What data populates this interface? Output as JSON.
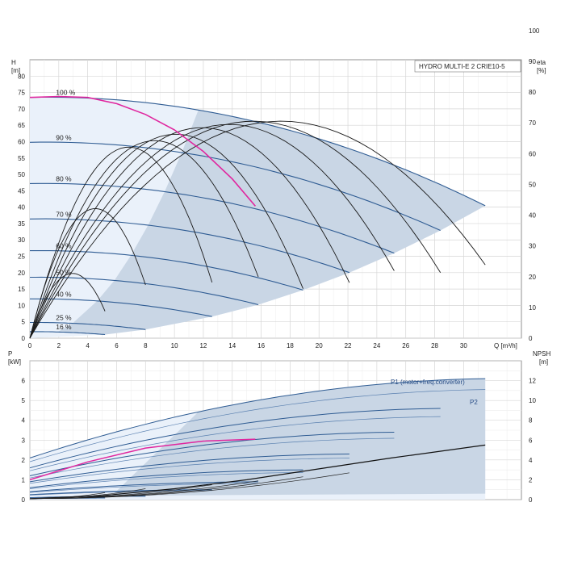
{
  "chart_data": [
    {
      "type": "line",
      "panel": "head",
      "title": "HYDRO MULTI-E 2 CRIE10-5",
      "xlabel": "Q [m³/h]",
      "ylabel_left": "H\n[m]",
      "ylabel_right": "eta\n[%]",
      "xlim": [
        0,
        34
      ],
      "ylim": [
        0,
        85
      ],
      "eta_lim": [
        0,
        100
      ],
      "x_ticks": [
        0,
        2,
        4,
        6,
        8,
        10,
        12,
        14,
        16,
        18,
        20,
        22,
        24,
        26,
        28,
        30
      ],
      "y_ticks": [
        0,
        5,
        10,
        15,
        20,
        25,
        30,
        35,
        40,
        45,
        50,
        55,
        60,
        65,
        70,
        75,
        80
      ],
      "eta_ticks": [
        0,
        10,
        20,
        30,
        40,
        50,
        60,
        70,
        80,
        90,
        100
      ],
      "grid": true,
      "speed_curves": [
        {
          "label": "100 %",
          "qmax": 31.5,
          "h0": 73.5
        },
        {
          "label": "90 %",
          "qmax": 28.4,
          "h0": 59.8
        },
        {
          "label": "80 %",
          "qmax": 25.2,
          "h0": 47.2
        },
        {
          "label": "70 %",
          "qmax": 22.1,
          "h0": 36.4
        },
        {
          "label": "60 %",
          "qmax": 18.9,
          "h0": 26.7
        },
        {
          "label": "50 %",
          "qmax": 15.8,
          "h0": 18.6
        },
        {
          "label": "40 %",
          "qmax": 12.6,
          "h0": 12.0
        },
        {
          "label": "25 %",
          "qmax": 8.0,
          "h0": 4.8
        },
        {
          "label": "16 %",
          "qmax": 5.2,
          "h0": 2.0
        }
      ],
      "duty_curve": {
        "q": [
          0,
          2,
          4,
          6,
          8,
          10,
          12,
          14,
          15.6
        ],
        "h": [
          73.5,
          73.8,
          73.5,
          71.6,
          68.3,
          63.6,
          57.0,
          48.6,
          40.3
        ]
      },
      "efficiency_peaks": [
        {
          "qpeak": 16.5,
          "eta": 67,
          "qend": 31.5
        },
        {
          "qpeak": 14.7,
          "eta": 67,
          "qend": 28.4
        },
        {
          "qpeak": 13.1,
          "eta": 66,
          "qend": 25.2
        },
        {
          "qpeak": 11.3,
          "eta": 65,
          "qend": 22.1
        },
        {
          "qpeak": 9.6,
          "eta": 63,
          "qend": 18.9
        },
        {
          "qpeak": 8.2,
          "eta": 61,
          "qend": 15.8
        },
        {
          "qpeak": 6.5,
          "eta": 59,
          "qend": 12.6
        },
        {
          "qpeak": 4.3,
          "eta": 40,
          "qend": 8.0
        },
        {
          "qpeak": 2.8,
          "eta": 20,
          "qend": 5.2
        }
      ]
    },
    {
      "type": "line",
      "panel": "power",
      "xlabel": "",
      "ylabel_left": "P\n[kW]",
      "ylabel_right": "NPSH\n[m]",
      "xlim": [
        0,
        34
      ],
      "ylim": [
        0,
        7
      ],
      "npsh_lim": [
        0,
        14
      ],
      "y_ticks": [
        0,
        1,
        2,
        3,
        4,
        5,
        6
      ],
      "npsh_ticks": [
        0,
        2,
        4,
        6,
        8,
        10,
        12
      ],
      "grid": true,
      "annotations": [
        "P1 (motor+freq.converter)",
        "P2"
      ],
      "power_curves": [
        {
          "label": "100 %",
          "p0": 2.1,
          "pmax": 6.1,
          "qmax": 31.5
        },
        {
          "label": "90 %",
          "p0": 1.6,
          "pmax": 4.6,
          "qmax": 28.4
        },
        {
          "label": "80 %",
          "p0": 1.2,
          "pmax": 3.4,
          "qmax": 25.2
        },
        {
          "label": "70 %",
          "p0": 0.9,
          "pmax": 2.3,
          "qmax": 22.1
        },
        {
          "label": "60 %",
          "p0": 0.6,
          "pmax": 1.5,
          "qmax": 18.9
        },
        {
          "label": "50 %",
          "p0": 0.4,
          "pmax": 0.9,
          "qmax": 15.8
        },
        {
          "label": "40 %",
          "p0": 0.25,
          "pmax": 0.5,
          "qmax": 12.6
        },
        {
          "label": "25 %",
          "p0": 0.1,
          "pmax": 0.18,
          "qmax": 8.0
        },
        {
          "label": "16 %",
          "p0": 0.05,
          "pmax": 0.08,
          "qmax": 5.2
        }
      ],
      "p1_max": 6.1,
      "p2_max": 5.6,
      "duty_power": {
        "q": [
          0,
          4,
          8,
          12,
          15.6
        ],
        "p": [
          1.0,
          1.9,
          2.6,
          2.95,
          3.05
        ]
      },
      "npsh": {
        "q": [
          0,
          5,
          10,
          15,
          20,
          25,
          31.5
        ],
        "m": [
          0.1,
          0.4,
          1.1,
          2.0,
          3.1,
          4.2,
          5.5
        ]
      }
    }
  ]
}
